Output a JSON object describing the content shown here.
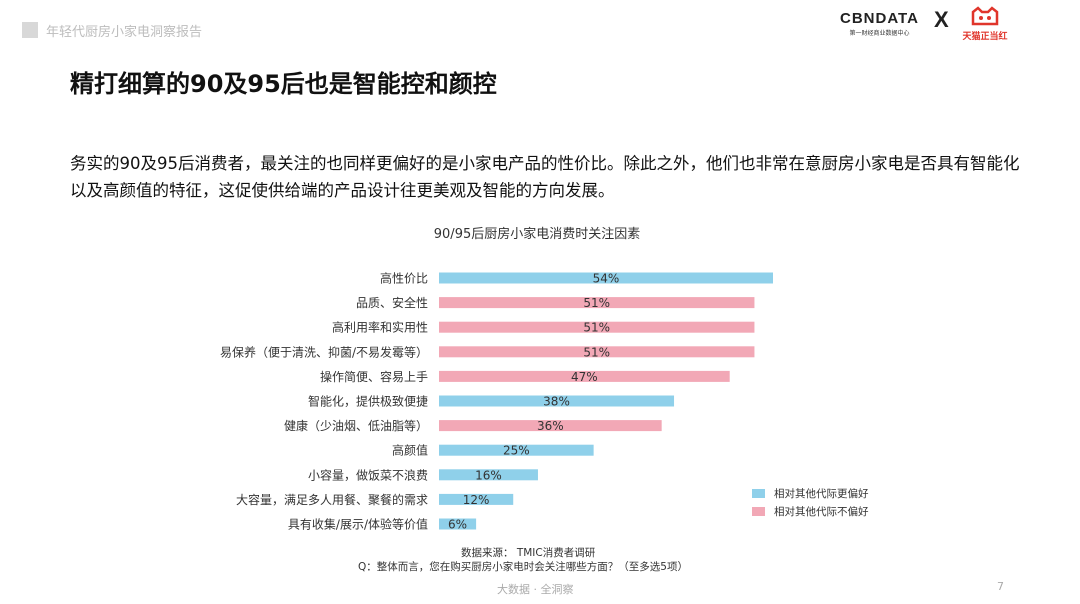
{
  "header": {
    "report_title": "年轻代厨房小家电洞察报告",
    "cbn_logo_text": "CBNDATA",
    "cbn_logo_sub": "第一财经商业数据中心",
    "separator": "X",
    "tmic_logo_text": "天猫正当红",
    "tmic_color": "#e0352b"
  },
  "page": {
    "title": "精打细算的90及95后也是智能控和颜控",
    "intro": "务实的90及95后消费者，最关注的也同样更偏好的是小家电产品的性价比。除此之外，他们也非常在意厨房小家电是否具有智能化以及高颜值的特征，这促使供给端的产品设计往更美观及智能的方向发展。"
  },
  "chart_data": {
    "type": "bar",
    "orientation": "horizontal",
    "title": "90/95后厨房小家电消费时关注因素",
    "categories": [
      "高性价比",
      "品质、安全性",
      "高利用率和实用性",
      "易保养（便于清洗、抑菌/不易发霉等）",
      "操作简便、容易上手",
      "智能化，提供极致便捷",
      "健康（少油烟、低油脂等）",
      "高颜值",
      "小容量，做饭菜不浪费",
      "大容量，满足多人用餐、聚餐的需求",
      "具有收集/展示/体验等价值"
    ],
    "values": [
      54,
      51,
      51,
      51,
      47,
      38,
      36,
      25,
      16,
      12,
      6
    ],
    "value_labels": [
      "54%",
      "51%",
      "51%",
      "51%",
      "47%",
      "38%",
      "36%",
      "25%",
      "16%",
      "12%",
      "6%"
    ],
    "bar_group": [
      "prefer",
      "not_prefer",
      "not_prefer",
      "not_prefer",
      "not_prefer",
      "prefer",
      "not_prefer",
      "prefer",
      "prefer",
      "prefer",
      "prefer"
    ],
    "legend": [
      {
        "key": "prefer",
        "label": "相对其他代际更偏好",
        "color": "#8fd0ea"
      },
      {
        "key": "not_prefer",
        "label": "相对其他代际不偏好",
        "color": "#f2a8b6"
      }
    ],
    "legend_position": "bottom-right",
    "xlim": [
      0,
      54
    ],
    "grid": false
  },
  "source": {
    "text": "数据来源： TMIC消费者调研",
    "question": "Q：整体而言，您在购买厨房小家电时会关注哪些方面？（至多选5项）"
  },
  "footer": {
    "center": "大数据 · 全洞察",
    "page_number": "7"
  }
}
